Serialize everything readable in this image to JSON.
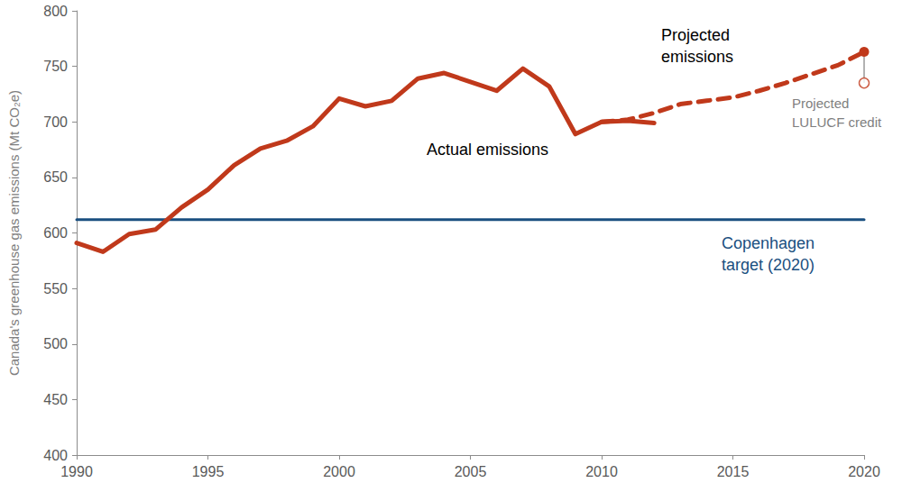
{
  "chart_data": {
    "type": "line",
    "y_label": "Canada's greenhouse gas emissions (Mt CO₂e)",
    "x": [
      1990,
      1991,
      1992,
      1993,
      1994,
      1995,
      1996,
      1997,
      1998,
      1999,
      2000,
      2001,
      2002,
      2003,
      2004,
      2005,
      2006,
      2007,
      2008,
      2009,
      2010,
      2011,
      2012,
      2013,
      2014,
      2015,
      2016,
      2017,
      2018,
      2019,
      2020
    ],
    "xlim": [
      1990,
      2020
    ],
    "xticks": [
      1990,
      1995,
      2000,
      2005,
      2010,
      2015,
      2020
    ],
    "ylim": [
      400,
      800
    ],
    "yticks": [
      400,
      450,
      500,
      550,
      600,
      650,
      700,
      750,
      800
    ],
    "grid": false,
    "series": [
      {
        "name": "Actual emissions",
        "color": "#c0391b",
        "line_style": "solid",
        "values": [
          591,
          583,
          599,
          603,
          623,
          639,
          661,
          676,
          683,
          696,
          721,
          714,
          719,
          739,
          744,
          736,
          728,
          748,
          732,
          689,
          700,
          701,
          699,
          null,
          null,
          null,
          null,
          null,
          null,
          null,
          null
        ]
      },
      {
        "name": "Projected emissions",
        "color": "#c0391b",
        "line_style": "dashed",
        "marker": "last",
        "values": [
          null,
          null,
          null,
          null,
          null,
          null,
          null,
          null,
          null,
          null,
          null,
          null,
          null,
          null,
          null,
          null,
          null,
          null,
          null,
          null,
          700,
          702,
          708,
          716,
          719,
          722,
          728,
          735,
          743,
          751,
          763
        ]
      },
      {
        "name": "Copenhagen target (2020)",
        "color": "#1a4f80",
        "line_style": "solid",
        "values": [
          612,
          612,
          612,
          612,
          612,
          612,
          612,
          612,
          612,
          612,
          612,
          612,
          612,
          612,
          612,
          612,
          612,
          612,
          612,
          612,
          612,
          612,
          612,
          612,
          612,
          612,
          612,
          612,
          612,
          612,
          612
        ]
      },
      {
        "name": "Projected LULUCF credit",
        "type": "scatter",
        "color": "#c0391b",
        "marker": "hollow",
        "values": [
          null,
          null,
          null,
          null,
          null,
          null,
          null,
          null,
          null,
          null,
          null,
          null,
          null,
          null,
          null,
          null,
          null,
          null,
          null,
          null,
          null,
          null,
          null,
          null,
          null,
          null,
          null,
          null,
          null,
          null,
          735
        ]
      }
    ]
  }
}
